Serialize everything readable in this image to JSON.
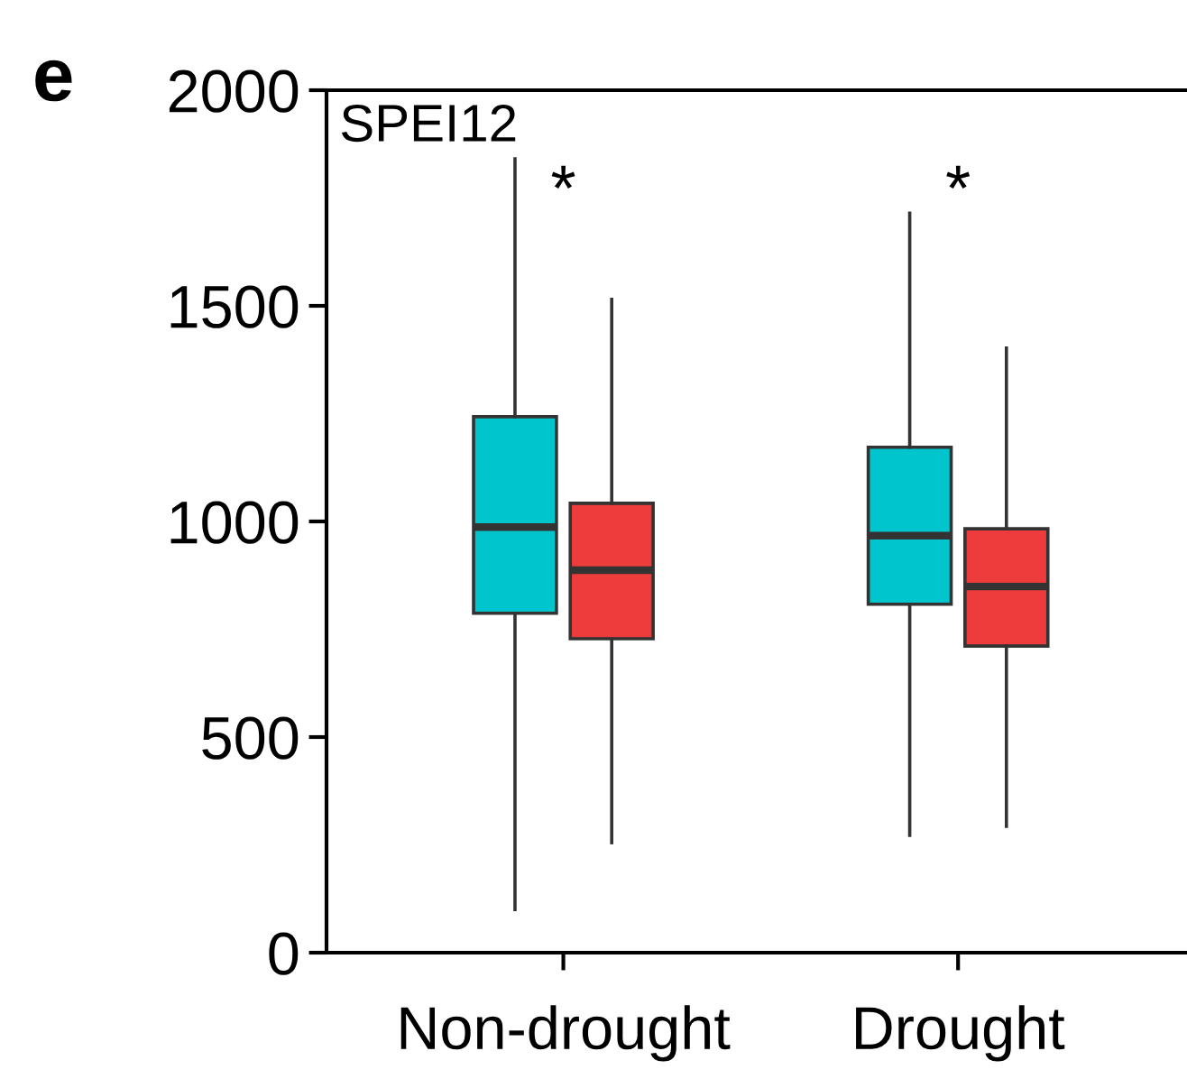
{
  "chart_data": {
    "type": "box",
    "categories": [
      "Non-drought",
      "Drought"
    ],
    "series": [
      {
        "color": "#00c5cd",
        "boxes": [
          {
            "low": 100,
            "q1": 787,
            "median": 987,
            "q3": 1243,
            "high": 1841
          },
          {
            "low": 272,
            "q1": 808,
            "median": 967,
            "q3": 1172,
            "high": 1715
          }
        ]
      },
      {
        "color": "#ee3b3b",
        "boxes": [
          {
            "low": 255,
            "q1": 728,
            "median": 887,
            "q3": 1042,
            "high": 1515
          },
          {
            "low": 293,
            "q1": 711,
            "median": 849,
            "q3": 983,
            "high": 1402
          }
        ]
      }
    ],
    "ylim": [
      0,
      2000
    ],
    "yticks": [
      0,
      500,
      1000,
      1500,
      2000
    ],
    "grid": false,
    "legend": false,
    "annotations": [
      "e",
      "SPEI12",
      "*",
      "*"
    ]
  }
}
